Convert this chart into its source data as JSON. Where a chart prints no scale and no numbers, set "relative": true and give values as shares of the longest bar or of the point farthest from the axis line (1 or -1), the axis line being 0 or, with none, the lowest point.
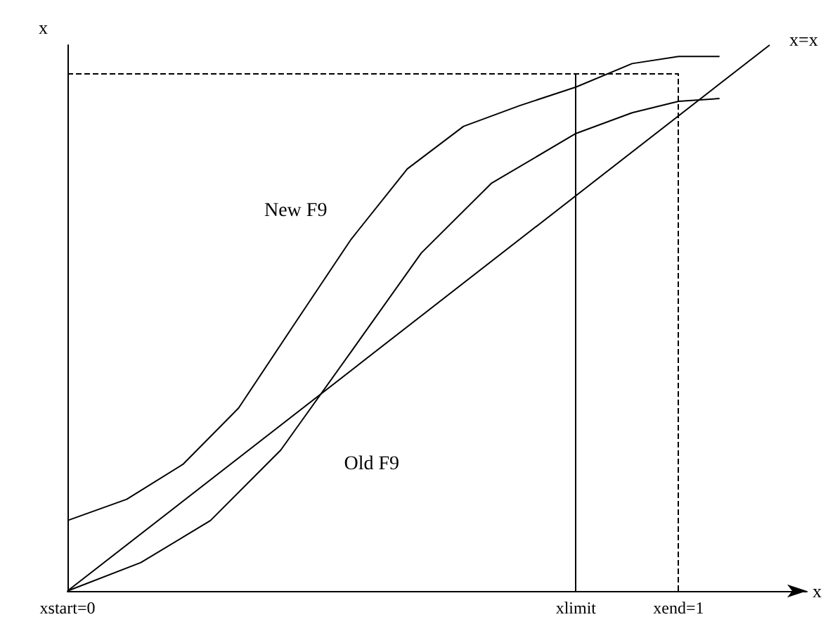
{
  "chart_data": {
    "type": "line",
    "relative": true,
    "xlabel": "x",
    "ylabel": "x",
    "xlim": [
      0,
      1.21
    ],
    "xticks": [
      {
        "value": 0,
        "label": "xstart=0"
      },
      {
        "value": 0.832,
        "label": "xlimit"
      },
      {
        "value": 1,
        "label": "xend=1"
      }
    ],
    "series": [
      {
        "name": "x=x",
        "color": "#000000",
        "x": [
          0,
          1.149
        ],
        "values": [
          0,
          1
        ]
      },
      {
        "name": "New F9",
        "color": "#000000",
        "x": [
          0,
          0.097,
          0.189,
          0.28,
          0.372,
          0.464,
          0.556,
          0.648,
          0.74,
          0.832,
          0.924,
          1.0,
          1.067
        ],
        "values": [
          0.129,
          0.168,
          0.232,
          0.335,
          0.49,
          0.644,
          0.773,
          0.851,
          0.889,
          0.923,
          0.966,
          0.979,
          0.979
        ]
      },
      {
        "name": "Old F9",
        "color": "#000000",
        "x": [
          0,
          0.12,
          0.234,
          0.349,
          0.464,
          0.579,
          0.694,
          0.832,
          0.924,
          1.0,
          1.067
        ],
        "values": [
          0,
          0.052,
          0.129,
          0.258,
          0.438,
          0.619,
          0.747,
          0.838,
          0.876,
          0.897,
          0.902
        ]
      }
    ],
    "ref_lines": [
      {
        "axis": "x",
        "value": 0.832,
        "line_style": "solid"
      },
      {
        "axis": "x",
        "value": 1,
        "line_style": "dashed"
      },
      {
        "axis": "y",
        "value": 0.948,
        "line_style": "dashed"
      }
    ],
    "grid": false,
    "legend": false,
    "marker": "none",
    "line_style": "solid"
  }
}
